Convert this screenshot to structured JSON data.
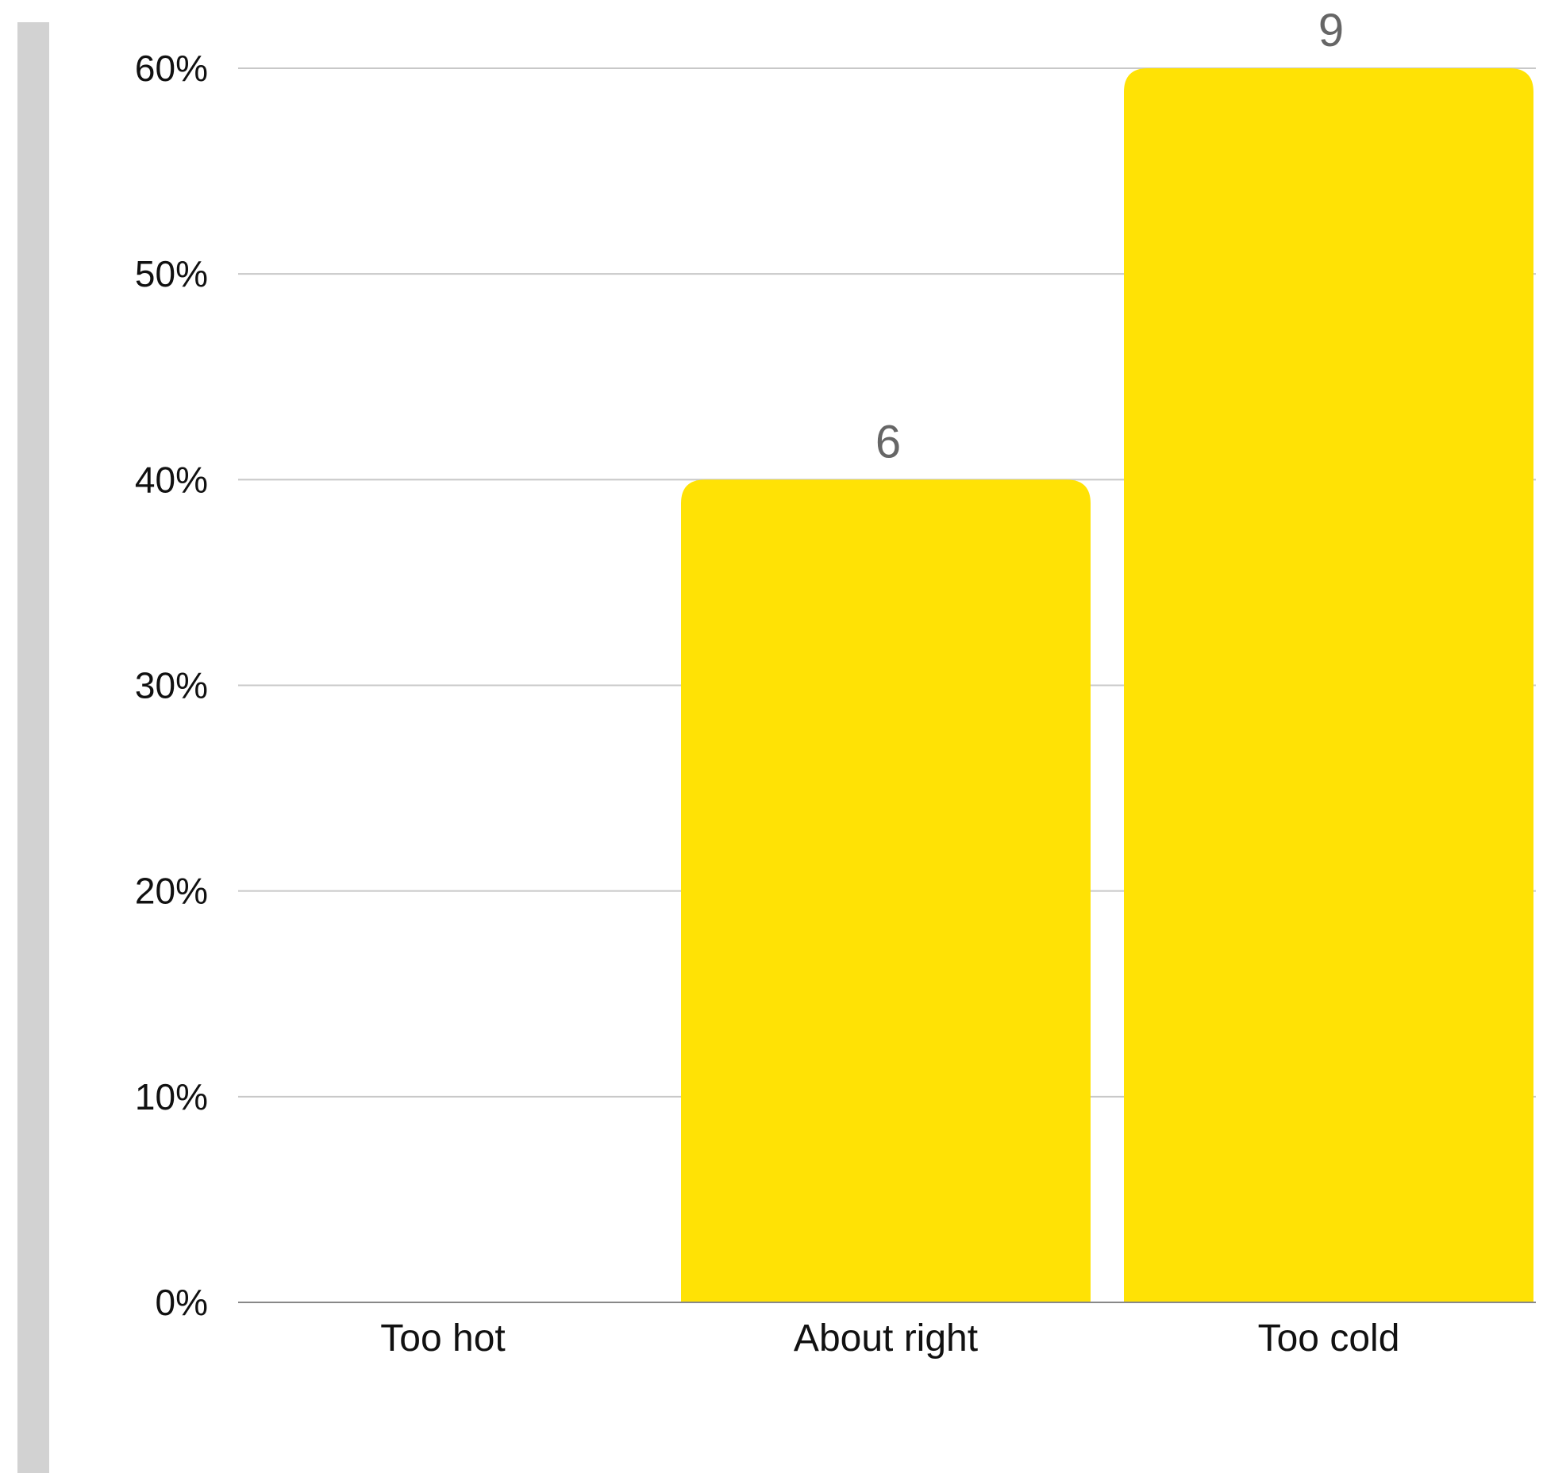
{
  "chart_data": {
    "type": "bar",
    "categories": [
      "Too hot",
      "About right",
      "Too cold"
    ],
    "values": [
      0,
      40,
      60
    ],
    "data_labels": [
      "",
      "6",
      "9"
    ],
    "ylim": [
      0,
      60
    ],
    "yticks": [
      0,
      10,
      20,
      30,
      40,
      50,
      60
    ],
    "ytick_labels": [
      "0%",
      "10%",
      "20%",
      "30%",
      "40%",
      "50%",
      "60%"
    ],
    "grid": true,
    "title": "",
    "xlabel": "",
    "ylabel": "",
    "bar_color": "#FFE205",
    "gridline_color": "#C8C8C8",
    "data_label_color": "#666666"
  }
}
